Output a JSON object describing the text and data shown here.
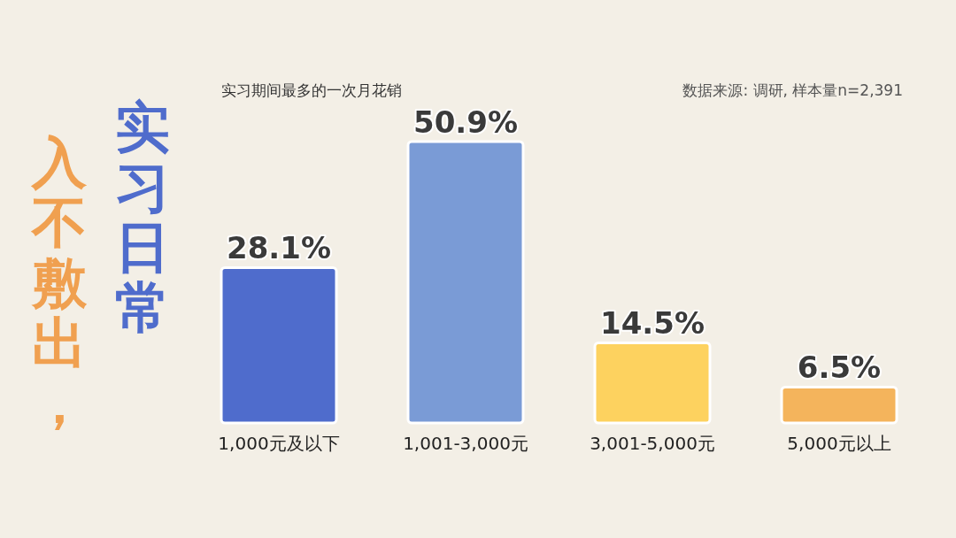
{
  "chart_data": {
    "type": "bar",
    "title": "入不敷出，实习日常",
    "subtitle": "实习期间最多的一次月花销",
    "categories": [
      "1,000元及以下",
      "1,001-3,000元",
      "3,001-5,000元",
      "5,000元以上"
    ],
    "values": [
      28.1,
      50.9,
      14.5,
      6.5
    ],
    "value_labels": [
      "28.1%",
      "50.9%",
      "14.5%",
      "6.5%"
    ],
    "colors": [
      "#4f6ccc",
      "#7a9bd6",
      "#fdd25f",
      "#f4b45c"
    ],
    "annotations": [
      "数据来源: 调研, 样本量n=2,391"
    ]
  }
}
